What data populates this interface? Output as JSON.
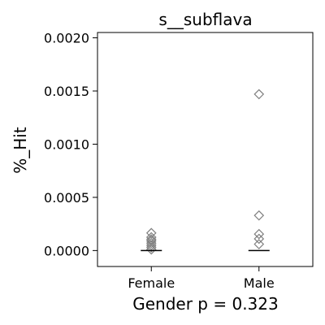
{
  "chart_data": {
    "type": "scatter",
    "title": "s__subflava",
    "xlabel": "Gender p = 0.323",
    "ylabel": "%_Hit",
    "categories": [
      "Female",
      "Male"
    ],
    "ylim": [
      -0.00015,
      0.00205
    ],
    "yticks": [
      "0.0000",
      "0.0005",
      "0.0010",
      "0.0015",
      "0.0020"
    ],
    "ytick_values": [
      0,
      0.0005,
      0.001,
      0.0015,
      0.002
    ],
    "grid": false,
    "legend": "none",
    "marker": "diamond-open",
    "marker_color": "#7f7f7f",
    "series": [
      {
        "category": "Female",
        "values": [
          0.000165,
          0.000125,
          0.000105,
          9e-05,
          7e-05,
          5e-05,
          3e-05,
          1e-05
        ],
        "median": 0.0
      },
      {
        "category": "Male",
        "values": [
          0.00147,
          0.00033,
          0.000155,
          0.00011,
          6e-05
        ],
        "median": 0.0
      }
    ]
  }
}
